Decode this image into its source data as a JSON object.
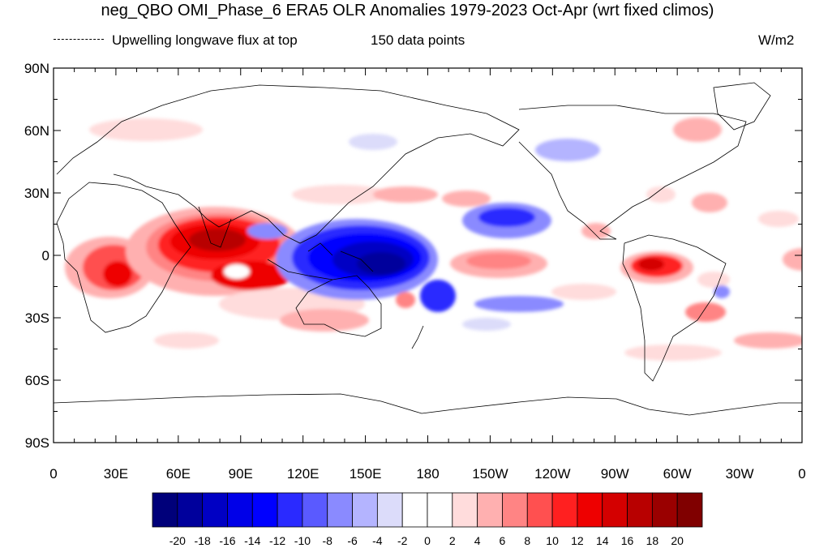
{
  "title": "neg_QBO OMI_Phase_6 ERA5 OLR Anomalies 1979-2023 Oct-Apr (wrt fixed climos)",
  "legend_label": "Upwelling longwave flux at top",
  "points_label": "150 data points",
  "units": "W/m2",
  "lon_labels": [
    "0",
    "30E",
    "60E",
    "90E",
    "120E",
    "150E",
    "180",
    "150W",
    "120W",
    "90W",
    "60W",
    "30W",
    "0"
  ],
  "lat_labels": [
    "90N",
    "60N",
    "30N",
    "0",
    "30S",
    "60S",
    "90S"
  ],
  "colorbar": {
    "labels": [
      "-20",
      "-18",
      "-16",
      "-14",
      "-12",
      "-10",
      "-8",
      "-6",
      "-4",
      "-2",
      "0",
      "2",
      "4",
      "6",
      "8",
      "10",
      "12",
      "14",
      "16",
      "18",
      "20"
    ],
    "colors": [
      "#00007a",
      "#00009c",
      "#0000c4",
      "#0000e8",
      "#0000ff",
      "#2a2aff",
      "#5a5aff",
      "#8a8aff",
      "#b4b4ff",
      "#dcdcfa",
      "#ffffff",
      "#ffffff",
      "#ffdcdc",
      "#ffb0b0",
      "#ff8484",
      "#ff5050",
      "#ff2020",
      "#ee0000",
      "#d40000",
      "#b80000",
      "#9a0000",
      "#800000"
    ]
  },
  "chart_data": {
    "type": "heatmap",
    "variable": "OLR Anomalies",
    "units": "W/m2",
    "period": "1979-2023 Oct-Apr",
    "lon_range": [
      0,
      360
    ],
    "lat_range": [
      -90,
      90
    ],
    "levels": [
      -20,
      -18,
      -16,
      -14,
      -12,
      -10,
      -8,
      -6,
      -4,
      -2,
      0,
      2,
      4,
      6,
      8,
      10,
      12,
      14,
      16,
      18,
      20
    ],
    "features": [
      {
        "name": "Indian Ocean positive anomaly",
        "lon": 80,
        "lat": 5,
        "value": 18
      },
      {
        "name": "Eastern Indian Ocean positive anomaly",
        "lon": 95,
        "lat": -8,
        "value": 16
      },
      {
        "name": "East Africa positive anomaly",
        "lon": 30,
        "lat": -8,
        "value": 14
      },
      {
        "name": "Western Pacific negative anomaly",
        "lon": 150,
        "lat": 3,
        "value": -18
      },
      {
        "name": "Maritime Continent negative anomaly",
        "lon": 130,
        "lat": 5,
        "value": -16
      },
      {
        "name": "SPCZ negative anomaly",
        "lon": 190,
        "lat": -20,
        "value": -10
      },
      {
        "name": "Central North Pacific negative anomaly",
        "lon": 215,
        "lat": 15,
        "value": -8
      },
      {
        "name": "Equatorial central Pacific positive anomaly",
        "lon": 210,
        "lat": -5,
        "value": 6
      },
      {
        "name": "South America positive anomaly",
        "lon": 285,
        "lat": -5,
        "value": 12
      },
      {
        "name": "Subtropical South Pacific negative band",
        "lon": 215,
        "lat": -20,
        "value": -6
      },
      {
        "name": "South Atlantic positive anomaly",
        "lon": 325,
        "lat": -35,
        "value": 6
      }
    ]
  }
}
